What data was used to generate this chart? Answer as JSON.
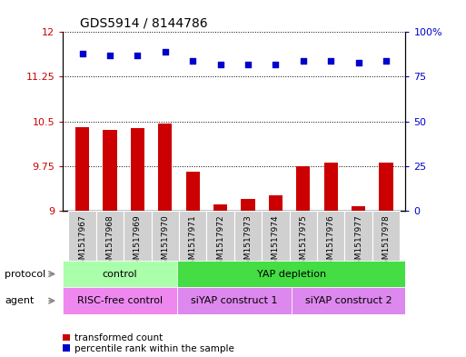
{
  "title": "GDS5914 / 8144786",
  "samples": [
    "GSM1517967",
    "GSM1517968",
    "GSM1517969",
    "GSM1517970",
    "GSM1517971",
    "GSM1517972",
    "GSM1517973",
    "GSM1517974",
    "GSM1517975",
    "GSM1517976",
    "GSM1517977",
    "GSM1517978"
  ],
  "transformed_count": [
    10.4,
    10.35,
    10.38,
    10.47,
    9.65,
    9.1,
    9.2,
    9.25,
    9.75,
    9.8,
    9.07,
    9.8
  ],
  "percentile_rank": [
    88,
    87,
    87,
    89,
    84,
    82,
    82,
    82,
    84,
    84,
    83,
    84
  ],
  "ylim_left": [
    9,
    12
  ],
  "ylim_right": [
    0,
    100
  ],
  "yticks_left": [
    9,
    9.75,
    10.5,
    11.25,
    12
  ],
  "yticks_left_labels": [
    "9",
    "9.75",
    "10.5",
    "11.25",
    "12"
  ],
  "yticks_right": [
    0,
    25,
    50,
    75,
    100
  ],
  "yticks_right_labels": [
    "0",
    "25",
    "50",
    "75",
    "100%"
  ],
  "bar_color": "#cc0000",
  "dot_color": "#0000cc",
  "bar_width": 0.5,
  "dot_size": 20,
  "protocol_labels": [
    [
      "control",
      0,
      3
    ],
    [
      "YAP depletion",
      4,
      11
    ]
  ],
  "agent_labels": [
    [
      "RISC-free control",
      0,
      3
    ],
    [
      "siYAP construct 1",
      4,
      7
    ],
    [
      "siYAP construct 2",
      8,
      11
    ]
  ],
  "protocol_colors": [
    "#aaffaa",
    "#44dd44"
  ],
  "agent_colors": [
    "#ee88ee",
    "#dd88ee",
    "#dd88ee"
  ],
  "legend_items": [
    "transformed count",
    "percentile rank within the sample"
  ],
  "legend_colors": [
    "#cc0000",
    "#0000cc"
  ],
  "xlabel_color": "#444444",
  "grid_color": "black",
  "grid_linestyle": "dotted",
  "grid_linewidth": 0.7,
  "title_fontsize": 10,
  "tick_fontsize": 8,
  "label_fontsize": 8,
  "sample_fontsize": 6.5
}
